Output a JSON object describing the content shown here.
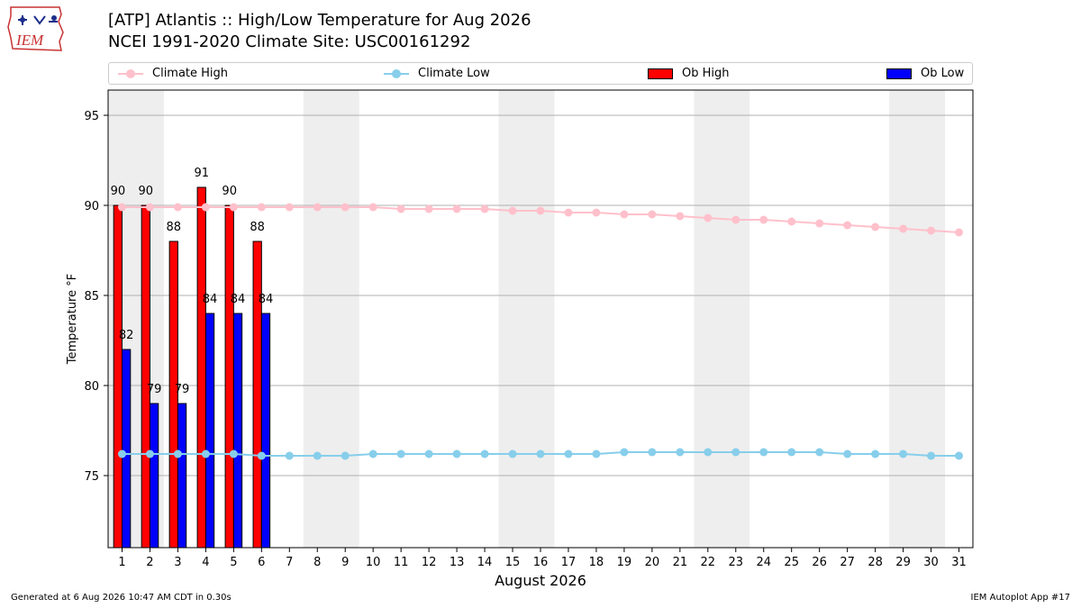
{
  "header": {
    "title_line1": "[ATP] Atlantis :: High/Low Temperature for Aug 2026",
    "title_line2": "NCEI 1991-2020 Climate Site: USC00161292",
    "logo_text": "IEM"
  },
  "legend": {
    "climate_high": "Climate High",
    "climate_low": "Climate Low",
    "ob_high": "Ob High",
    "ob_low": "Ob Low"
  },
  "colors": {
    "climate_high": "#ffc0cb",
    "climate_low": "#87ceeb",
    "ob_high": "#ff0000",
    "ob_low": "#0000ff",
    "weekend_band": "#eeeeee",
    "grid": "#b0b0b0"
  },
  "chart_data": {
    "type": "bar",
    "xlabel": "August 2026",
    "ylabel": "Temperature °F",
    "ylim": [
      71,
      96.4
    ],
    "yticks": [
      75,
      80,
      85,
      90,
      95
    ],
    "x": [
      1,
      2,
      3,
      4,
      5,
      6,
      7,
      8,
      9,
      10,
      11,
      12,
      13,
      14,
      15,
      16,
      17,
      18,
      19,
      20,
      21,
      22,
      23,
      24,
      25,
      26,
      27,
      28,
      29,
      30,
      31
    ],
    "weekend_shading": [
      [
        1,
        2
      ],
      [
        8,
        9
      ],
      [
        15,
        16
      ],
      [
        22,
        23
      ],
      [
        29,
        30
      ]
    ],
    "grid": "horizontal",
    "legend_position": "top",
    "bars": [
      {
        "name": "Ob High",
        "x": [
          1,
          2,
          3,
          4,
          5,
          6
        ],
        "values": [
          90,
          90,
          88,
          91,
          90,
          88
        ],
        "labels": [
          "90",
          "90",
          "88",
          "91",
          "90",
          "88"
        ]
      },
      {
        "name": "Ob Low",
        "x": [
          1,
          2,
          3,
          4,
          5,
          6
        ],
        "values": [
          82,
          79,
          79,
          84,
          84,
          84
        ],
        "labels": [
          "82",
          "79",
          "79",
          "84",
          "84",
          "84"
        ]
      }
    ],
    "lines": [
      {
        "name": "Climate High",
        "values": [
          89.9,
          89.9,
          89.9,
          89.9,
          89.9,
          89.9,
          89.9,
          89.9,
          89.9,
          89.9,
          89.8,
          89.8,
          89.8,
          89.8,
          89.7,
          89.7,
          89.6,
          89.6,
          89.5,
          89.5,
          89.4,
          89.3,
          89.2,
          89.2,
          89.1,
          89.0,
          88.9,
          88.8,
          88.7,
          88.6,
          88.5
        ]
      },
      {
        "name": "Climate Low",
        "values": [
          76.2,
          76.2,
          76.2,
          76.2,
          76.2,
          76.1,
          76.1,
          76.1,
          76.1,
          76.2,
          76.2,
          76.2,
          76.2,
          76.2,
          76.2,
          76.2,
          76.2,
          76.2,
          76.3,
          76.3,
          76.3,
          76.3,
          76.3,
          76.3,
          76.3,
          76.3,
          76.2,
          76.2,
          76.2,
          76.1,
          76.1
        ]
      }
    ]
  },
  "footer": {
    "generated": "Generated at 6 Aug 2026 10:47 AM CDT in 0.30s",
    "app": "IEM Autoplot App #17"
  }
}
